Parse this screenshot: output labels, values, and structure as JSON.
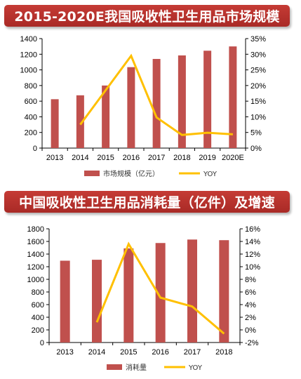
{
  "chart_data": [
    {
      "type": "bar",
      "title": "2015-2020E我国吸收性卫生用品市场规模",
      "categories": [
        "2013",
        "2014",
        "2015",
        "2016",
        "2017",
        "2018",
        "2019",
        "2020E"
      ],
      "series": [
        {
          "name": "市场规模（亿元）",
          "type": "bar",
          "axis": "left",
          "values": [
            625,
            675,
            800,
            1035,
            1140,
            1185,
            1245,
            1300
          ]
        },
        {
          "name": "YOY",
          "type": "line",
          "axis": "right",
          "values": [
            null,
            7.5,
            18.5,
            29.5,
            9.8,
            4.2,
            4.9,
            4.4
          ]
        }
      ],
      "y_left": {
        "min": 0,
        "max": 1400,
        "step": 200,
        "ticks": [
          "0",
          "200",
          "400",
          "600",
          "800",
          "1000",
          "1200",
          "1400"
        ]
      },
      "y_right": {
        "min": 0,
        "max": 35,
        "step": 5,
        "ticks": [
          "0%",
          "5%",
          "10%",
          "15%",
          "20%",
          "25%",
          "30%",
          "35%"
        ]
      },
      "legend_position": "bottom",
      "grid": false
    },
    {
      "type": "bar",
      "title": "中国吸收性卫生用品消耗量（亿件）及增速",
      "categories": [
        "2013",
        "2014",
        "2015",
        "2016",
        "2017",
        "2018"
      ],
      "series": [
        {
          "name": "消耗量",
          "type": "bar",
          "axis": "left",
          "values": [
            1295,
            1310,
            1490,
            1575,
            1630,
            1620
          ]
        },
        {
          "name": "YOY",
          "type": "line",
          "axis": "right",
          "values": [
            null,
            1.2,
            13.6,
            5.1,
            3.7,
            -0.6
          ]
        }
      ],
      "y_left": {
        "min": 0,
        "max": 1800,
        "step": 200,
        "ticks": [
          "0",
          "200",
          "400",
          "600",
          "800",
          "1000",
          "1200",
          "1400",
          "1600",
          "1800"
        ]
      },
      "y_right": {
        "min": -2,
        "max": 16,
        "step": 2,
        "ticks": [
          "-2%",
          "0%",
          "2%",
          "4%",
          "6%",
          "8%",
          "10%",
          "12%",
          "14%",
          "16%"
        ]
      },
      "legend_position": "bottom",
      "grid": false
    }
  ],
  "colors": {
    "bar": "#c0504d",
    "line": "#ffc000",
    "banner": "#b3302b",
    "axis": "#000000"
  }
}
